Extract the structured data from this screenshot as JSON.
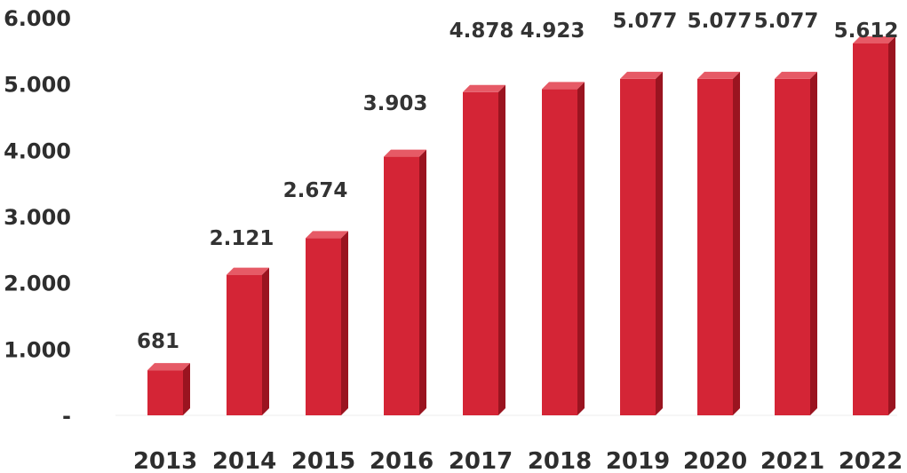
{
  "chart_data": {
    "type": "bar",
    "categories": [
      "2013",
      "2014",
      "2015",
      "2016",
      "2017",
      "2018",
      "2019",
      "2020",
      "2021",
      "2022"
    ],
    "series": [
      {
        "values": [
          681,
          2121,
          2674,
          3903,
          4878,
          4923,
          5077,
          5077,
          5077,
          5612
        ]
      }
    ],
    "data_labels": [
      "681",
      "2.121",
      "2.674",
      "3.903",
      "4.878",
      "4.923",
      "5.077",
      "5.077",
      "5.077",
      "5.612"
    ],
    "y_ticks": [
      0,
      1000,
      2000,
      3000,
      4000,
      5000,
      6000
    ],
    "y_tick_labels": [
      "-",
      "1.000",
      "2.000",
      "3.000",
      "4.000",
      "5.000",
      "6.000"
    ],
    "ylim": [
      0,
      6000
    ],
    "title": "",
    "xlabel": "",
    "ylabel": "",
    "grid": false,
    "legend": "none",
    "colors": {
      "bar_front": "#d42536",
      "bar_side": "#9a1420",
      "bar_top": "#e65a66",
      "text": "#2e2e2e"
    }
  }
}
